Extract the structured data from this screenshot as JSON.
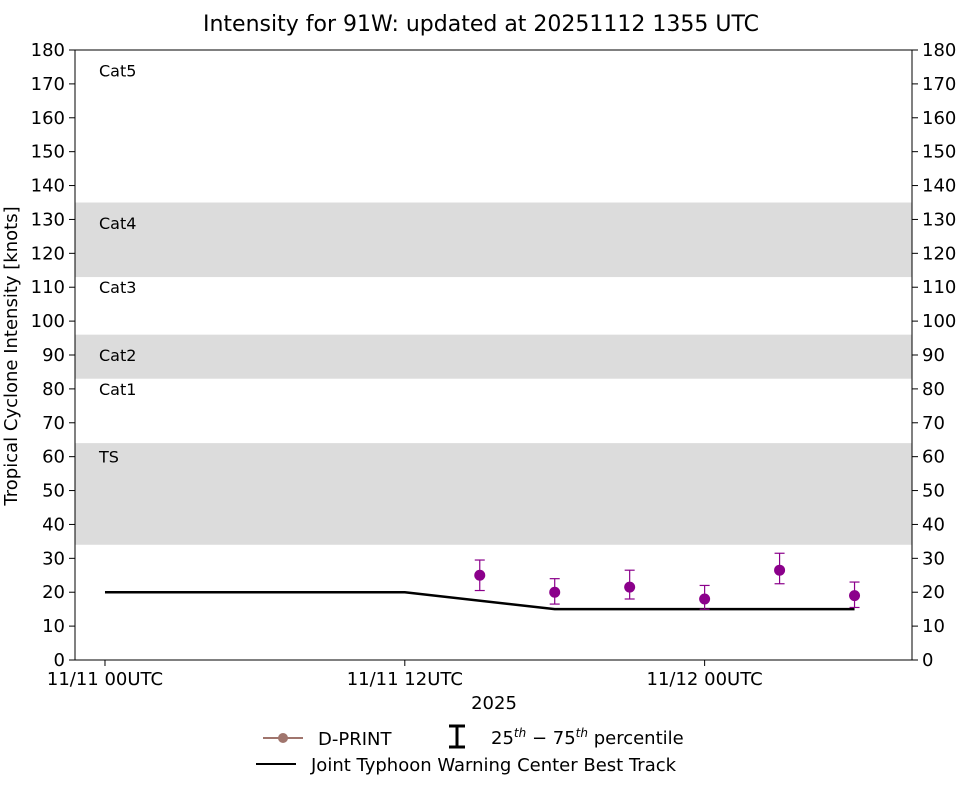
{
  "chart_data": {
    "type": "scatter",
    "title": "Intensity for 91W: updated at 20251112 1355 UTC",
    "ylabel": "Tropical Cyclone Intensity [knots]",
    "xlabel": "2025",
    "ylim": [
      0,
      180
    ],
    "yticks": [
      0,
      10,
      20,
      30,
      40,
      50,
      60,
      70,
      80,
      90,
      100,
      110,
      120,
      130,
      140,
      150,
      160,
      170,
      180
    ],
    "xlim_hours": [
      -1.2,
      32.3
    ],
    "xticks": [
      {
        "hour": 0,
        "label": "11/11 00UTC"
      },
      {
        "hour": 12,
        "label": "11/11 12UTC"
      },
      {
        "hour": 24,
        "label": "11/12 00UTC"
      }
    ],
    "bands": [
      {
        "label": "TS",
        "min": 34,
        "max": 64,
        "shaded": true
      },
      {
        "label": "Cat1",
        "min": 64,
        "max": 83,
        "shaded": false
      },
      {
        "label": "Cat2",
        "min": 83,
        "max": 96,
        "shaded": true
      },
      {
        "label": "Cat3",
        "min": 96,
        "max": 113,
        "shaded": false
      },
      {
        "label": "Cat4",
        "min": 113,
        "max": 135,
        "shaded": true
      },
      {
        "label": "Cat5",
        "min": 135,
        "max": 180,
        "shaded": false
      }
    ],
    "band_label_values": [
      {
        "label": "TS",
        "y": 60
      },
      {
        "label": "Cat1",
        "y": 80
      },
      {
        "label": "Cat2",
        "y": 90
      },
      {
        "label": "Cat3",
        "y": 110
      },
      {
        "label": "Cat4",
        "y": 129
      },
      {
        "label": "Cat5",
        "y": 174
      }
    ],
    "series": [
      {
        "name": "D-PRINT",
        "kind": "scatter-errorbar",
        "color": "#8b008b",
        "legend_color": "#a0756d",
        "points": [
          {
            "hour": 15,
            "value": 25,
            "p25": 20.5,
            "p75": 29.5
          },
          {
            "hour": 18,
            "value": 20,
            "p25": 16.5,
            "p75": 24
          },
          {
            "hour": 21,
            "value": 21.5,
            "p25": 18,
            "p75": 26.5
          },
          {
            "hour": 24,
            "value": 18,
            "p25": 15,
            "p75": 22
          },
          {
            "hour": 27,
            "value": 26.5,
            "p25": 22.5,
            "p75": 31.5
          },
          {
            "hour": 30,
            "value": 19,
            "p25": 15.5,
            "p75": 23
          }
        ]
      },
      {
        "name": "Joint Typhoon Warning Center Best Track",
        "kind": "line",
        "color": "#000000",
        "points": [
          {
            "hour": 0,
            "value": 20
          },
          {
            "hour": 6,
            "value": 20
          },
          {
            "hour": 12,
            "value": 20
          },
          {
            "hour": 18,
            "value": 15
          },
          {
            "hour": 24,
            "value": 15
          },
          {
            "hour": 30,
            "value": 15
          }
        ]
      }
    ],
    "legend": {
      "position": "bottom-center",
      "percentile_label": "25th − 75th percentile"
    },
    "band_color": "#dcdcdc"
  }
}
